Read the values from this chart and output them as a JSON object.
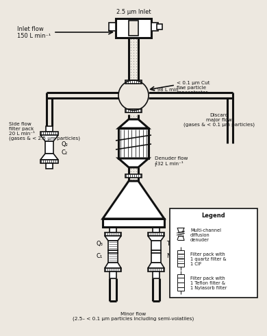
{
  "title": "2.5 μm Inlet",
  "bg_color": "#ede8e0",
  "line_color": "#111111",
  "text_color": "#111111",
  "annotations": {
    "inlet_flow": "Inlet flow\n150 L min⁻¹",
    "side_flow": "Side flow\nfilter pack\n20 L min⁻¹\n(gases & < 2.5 μm particles)",
    "concentrator": "< 0.1 μm Cut\nfine particle\nconcentrator",
    "major_flow_rate": "≈ 98 L min⁻¹",
    "discard": "Discard\nmajor flow\n(gases & < 0.1 μm particles)",
    "denuder_flow": "Denuder flow\n∲32 L min⁻¹",
    "minor_flow": "Minor flow\n(2.5– < 0.1 μm particles including semi-volatiles)",
    "Q3": "Q₃",
    "C1": "C₁",
    "T1": "T₁",
    "N1": "N₁",
    "Q2": "Q₂",
    "C2": "C₂",
    "legend_title": "Legend",
    "legend_1": "Multi-channel\ndiffusion\ndenuder",
    "legend_2": "Filter pack with\n1 quartz filter &\n1 CIF",
    "legend_3": "Filter pack with\n1 Teflon filter &\n1 Nylasorb filter"
  }
}
